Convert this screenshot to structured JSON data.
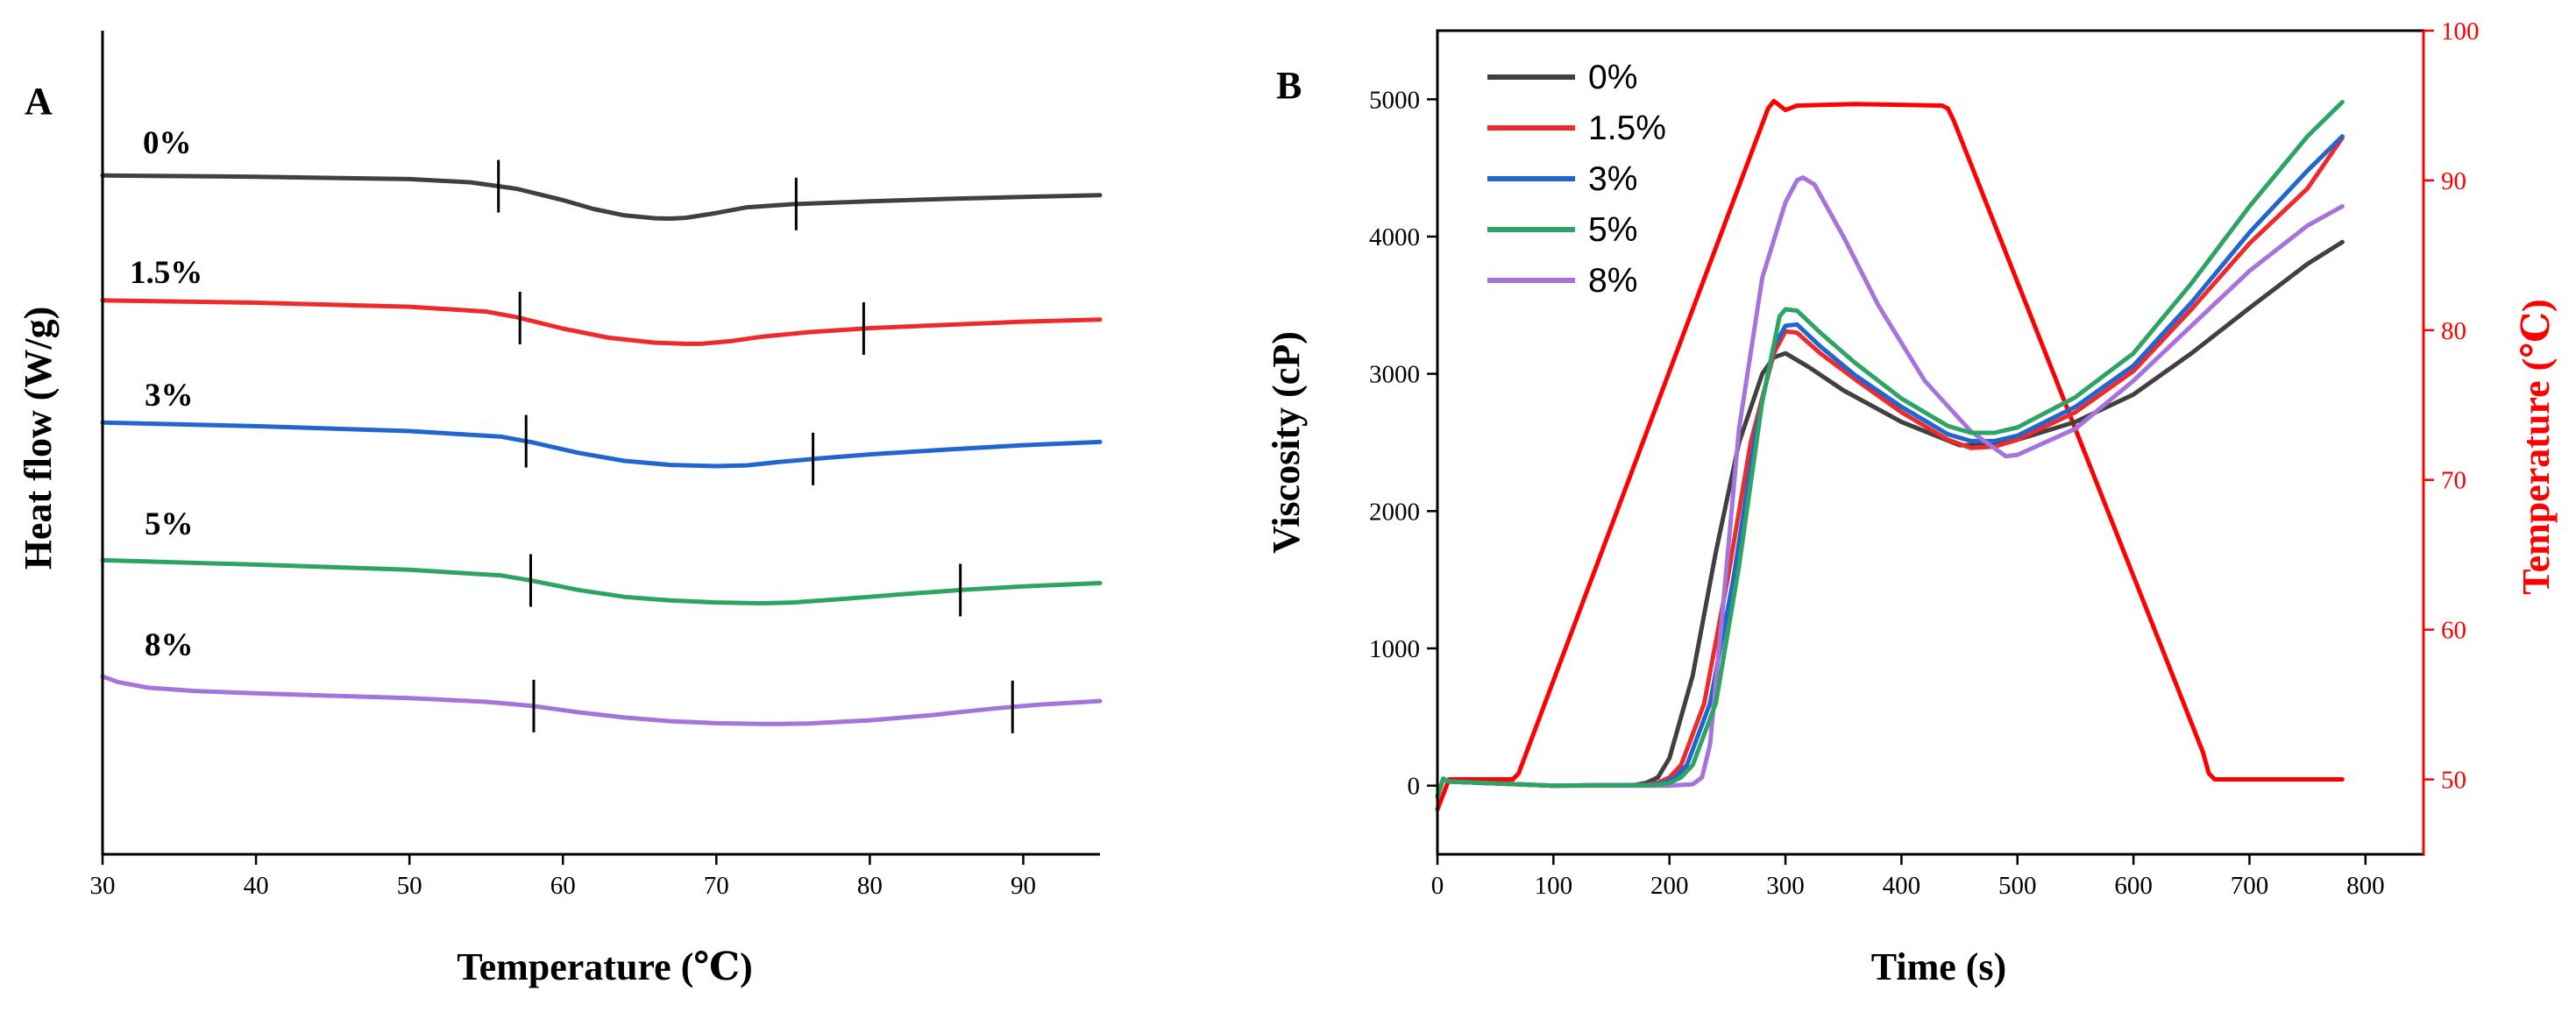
{
  "chart_data": [
    {
      "panel": "A",
      "type": "line",
      "xlabel": "Temperature (℃)",
      "ylabel": "Heat flow (W/g)",
      "xlim": [
        30,
        95
      ],
      "xticks": [
        30,
        40,
        50,
        60,
        70,
        80,
        90
      ],
      "y_units": "relative heat flow (curves vertically offset)",
      "series": [
        {
          "name": "0%",
          "color": "#404040",
          "x": [
            30,
            40,
            50,
            54,
            57,
            60,
            62,
            64,
            66,
            67,
            68,
            70,
            72,
            75,
            80,
            85,
            90,
            95
          ],
          "y": [
            0.5,
            0.8,
            1.4,
            2.2,
            3.8,
            6.6,
            8.8,
            10.4,
            11.1,
            11.2,
            11.0,
            9.8,
            8.4,
            7.6,
            6.9,
            6.3,
            5.8,
            5.4
          ],
          "onset_marker_x": 55.8,
          "endset_marker_x": 75.2
        },
        {
          "name": "1.5%",
          "color": "#ee2a2a",
          "x": [
            30,
            40,
            50,
            55,
            57,
            60,
            63,
            66,
            68,
            69,
            71,
            73,
            76,
            80,
            85,
            90,
            95
          ],
          "y": [
            0.6,
            1.2,
            2.2,
            3.4,
            4.8,
            7.6,
            9.9,
            11.1,
            11.4,
            11.4,
            10.7,
            9.6,
            8.5,
            7.5,
            6.7,
            5.9,
            5.4
          ],
          "onset_marker_x": 57.2,
          "endset_marker_x": 79.6
        },
        {
          "name": "3%",
          "color": "#1f66d1",
          "x": [
            30,
            40,
            50,
            56,
            58,
            61,
            64,
            67,
            70,
            72,
            74,
            77,
            80,
            85,
            90,
            95
          ],
          "y": [
            0.5,
            1.4,
            2.6,
            4.0,
            5.4,
            8.0,
            10.0,
            11.0,
            11.3,
            11.1,
            10.3,
            9.3,
            8.4,
            7.2,
            6.1,
            5.3
          ],
          "onset_marker_x": 57.6,
          "endset_marker_x": 76.3
        },
        {
          "name": "5%",
          "color": "#2ea463",
          "x": [
            30,
            40,
            50,
            56,
            58,
            61,
            64,
            67,
            70,
            73,
            75,
            78,
            82,
            86,
            90,
            95
          ],
          "y": [
            0.5,
            1.6,
            2.9,
            4.3,
            5.6,
            7.9,
            9.6,
            10.5,
            11.0,
            11.2,
            11.0,
            10.2,
            9.0,
            7.9,
            7.0,
            6.2
          ],
          "onset_marker_x": 57.9,
          "endset_marker_x": 85.9
        },
        {
          "name": "8%",
          "color": "#a573dc",
          "x": [
            30,
            31,
            33,
            36,
            40,
            45,
            50,
            55,
            58,
            61,
            64,
            67,
            70,
            73,
            74,
            76,
            80,
            84,
            88,
            91,
            95
          ],
          "y": [
            0.0,
            1.4,
            2.8,
            3.6,
            4.2,
            4.8,
            5.4,
            6.3,
            7.3,
            8.9,
            10.2,
            11.1,
            11.6,
            11.8,
            11.8,
            11.7,
            10.9,
            9.6,
            8.0,
            7.0,
            6.1
          ],
          "onset_marker_x": 58.1,
          "endset_marker_x": 89.3
        }
      ]
    },
    {
      "panel": "B",
      "type": "line",
      "xlabel": "Time (s)",
      "ylabel": "Viscosity (cP)",
      "y2label": "Temperature (℃)",
      "xlim": [
        0,
        850
      ],
      "ylim": [
        -500,
        5500
      ],
      "y2lim": [
        45,
        100
      ],
      "xticks": [
        0,
        100,
        200,
        300,
        400,
        500,
        600,
        700,
        800
      ],
      "yticks": [
        0,
        1000,
        2000,
        3000,
        4000,
        5000
      ],
      "y2ticks": [
        50,
        60,
        70,
        80,
        90,
        100
      ],
      "legend_position": "top-left",
      "series": [
        {
          "name": "0%",
          "color": "#404040",
          "axis": "left",
          "x": [
            0,
            5,
            10,
            100,
            170,
            180,
            190,
            200,
            220,
            240,
            260,
            280,
            290,
            300,
            320,
            350,
            400,
            450,
            480,
            500,
            550,
            600,
            650,
            700,
            750,
            780
          ],
          "y": [
            -80,
            50,
            30,
            0,
            5,
            20,
            60,
            200,
            800,
            1700,
            2500,
            3000,
            3120,
            3150,
            3050,
            2880,
            2650,
            2480,
            2480,
            2520,
            2650,
            2850,
            3150,
            3480,
            3800,
            3960
          ]
        },
        {
          "name": "1.5%",
          "color": "#ee2a2a",
          "axis": "left",
          "x": [
            0,
            5,
            10,
            100,
            180,
            190,
            200,
            210,
            230,
            250,
            270,
            290,
            300,
            310,
            330,
            360,
            400,
            440,
            460,
            480,
            500,
            550,
            600,
            650,
            700,
            750,
            780
          ],
          "y": [
            -80,
            50,
            30,
            0,
            5,
            20,
            60,
            150,
            600,
            1500,
            2500,
            3150,
            3310,
            3300,
            3150,
            2960,
            2720,
            2520,
            2460,
            2470,
            2520,
            2720,
            3020,
            3470,
            3950,
            4350,
            4720
          ]
        },
        {
          "name": "3%",
          "color": "#1f66d1",
          "axis": "left",
          "x": [
            0,
            5,
            10,
            100,
            185,
            195,
            205,
            215,
            235,
            255,
            275,
            290,
            300,
            310,
            330,
            360,
            400,
            440,
            460,
            480,
            500,
            550,
            600,
            650,
            700,
            750,
            780
          ],
          "y": [
            -80,
            50,
            30,
            0,
            5,
            20,
            60,
            150,
            600,
            1500,
            2600,
            3200,
            3350,
            3360,
            3200,
            2990,
            2760,
            2560,
            2510,
            2510,
            2550,
            2760,
            3060,
            3520,
            4030,
            4480,
            4730
          ]
        },
        {
          "name": "5%",
          "color": "#2ea463",
          "axis": "left",
          "x": [
            0,
            5,
            10,
            100,
            190,
            200,
            210,
            220,
            240,
            260,
            280,
            295,
            300,
            310,
            330,
            360,
            400,
            440,
            460,
            480,
            500,
            550,
            600,
            650,
            700,
            750,
            780
          ],
          "y": [
            -80,
            50,
            30,
            0,
            5,
            20,
            60,
            150,
            600,
            1600,
            2800,
            3420,
            3470,
            3460,
            3300,
            3080,
            2820,
            2620,
            2570,
            2570,
            2610,
            2830,
            3150,
            3660,
            4220,
            4730,
            4980
          ]
        },
        {
          "name": "8%",
          "color": "#a573dc",
          "axis": "left",
          "x": [
            0,
            5,
            10,
            100,
            200,
            220,
            228,
            235,
            245,
            260,
            280,
            300,
            310,
            315,
            325,
            350,
            380,
            420,
            460,
            490,
            500,
            550,
            600,
            650,
            700,
            750,
            780
          ],
          "y": [
            -80,
            50,
            30,
            0,
            0,
            10,
            60,
            300,
            1200,
            2600,
            3700,
            4250,
            4410,
            4430,
            4380,
            4000,
            3500,
            2950,
            2580,
            2400,
            2410,
            2600,
            2950,
            3350,
            3750,
            4080,
            4220
          ]
        },
        {
          "name": "Temperature",
          "color": "#ff0000",
          "axis": "right",
          "x": [
            0,
            5,
            10,
            15,
            20,
            65,
            70,
            285,
            290,
            300,
            310,
            360,
            435,
            440,
            445,
            660,
            665,
            670,
            680,
            700,
            780
          ],
          "y": [
            48,
            49,
            50,
            50,
            50,
            50,
            50.4,
            94.8,
            95.3,
            94.7,
            95.0,
            95.1,
            95.0,
            94.8,
            94.0,
            51.8,
            50.4,
            50.0,
            50.0,
            50.0,
            50.0
          ]
        }
      ]
    }
  ],
  "panel_a": {
    "letter": "A",
    "xlabel": "Temperature (℃)",
    "ylabel": "Heat flow (W/g)",
    "series_labels": [
      "0%",
      "1.5%",
      "3%",
      "5%",
      "8%"
    ]
  },
  "panel_b": {
    "letter": "B",
    "xlabel": "Time (s)",
    "ylabel": "Viscosity (cP)",
    "y2label": "Temperature (℃)",
    "legend": [
      "0%",
      "1.5%",
      "3%",
      "5%",
      "8%"
    ]
  }
}
